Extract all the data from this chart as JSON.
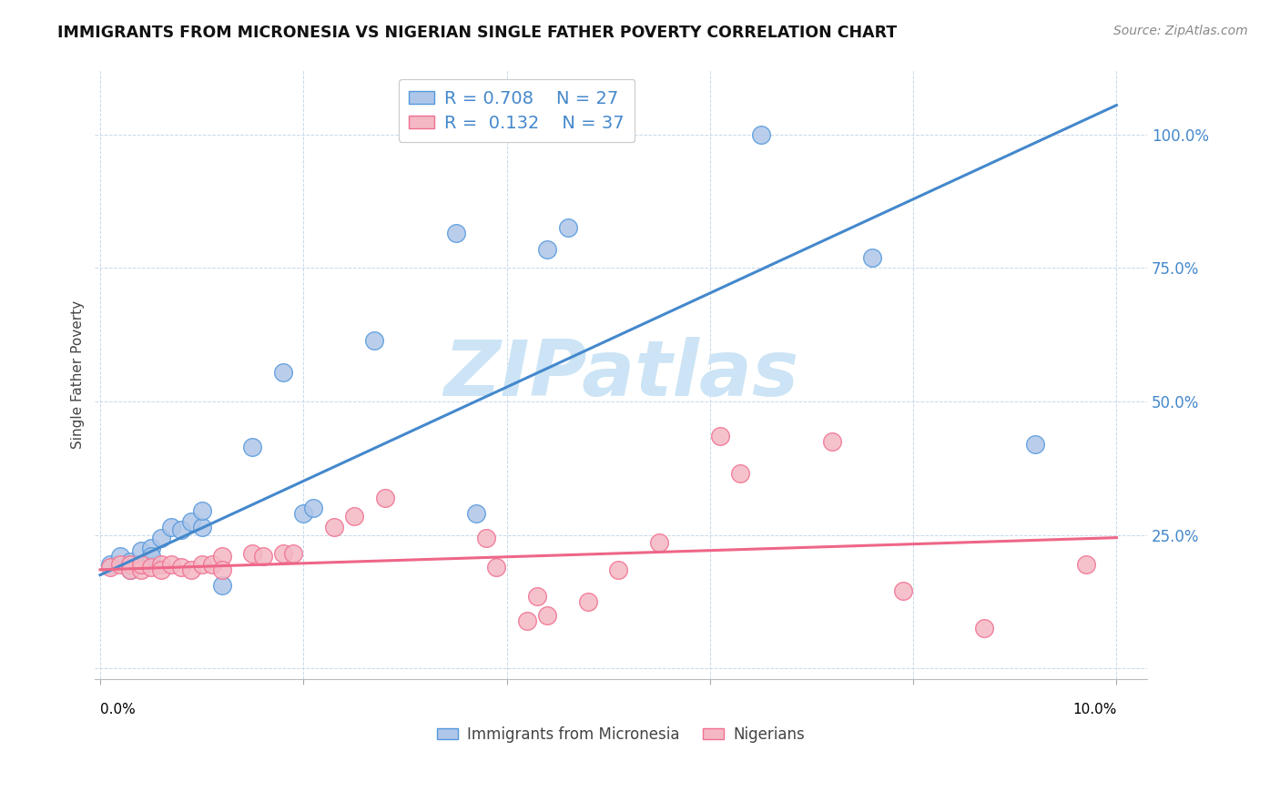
{
  "title": "IMMIGRANTS FROM MICRONESIA VS NIGERIAN SINGLE FATHER POVERTY CORRELATION CHART",
  "source": "Source: ZipAtlas.com",
  "ylabel": "Single Father Poverty",
  "legend_blue_r": "0.708",
  "legend_blue_n": "27",
  "legend_pink_r": "0.132",
  "legend_pink_n": "37",
  "blue_fill": "#aec6e8",
  "pink_fill": "#f4b8c4",
  "blue_edge": "#5599dd",
  "pink_edge": "#f07090",
  "blue_line_color": "#4488cc",
  "pink_line_color": "#ee6688",
  "blue_scatter": [
    [
      0.001,
      0.195
    ],
    [
      0.002,
      0.21
    ],
    [
      0.003,
      0.2
    ],
    [
      0.003,
      0.185
    ],
    [
      0.004,
      0.22
    ],
    [
      0.004,
      0.195
    ],
    [
      0.005,
      0.225
    ],
    [
      0.005,
      0.21
    ],
    [
      0.006,
      0.245
    ],
    [
      0.007,
      0.265
    ],
    [
      0.008,
      0.26
    ],
    [
      0.009,
      0.275
    ],
    [
      0.01,
      0.265
    ],
    [
      0.01,
      0.295
    ],
    [
      0.012,
      0.155
    ],
    [
      0.015,
      0.415
    ],
    [
      0.018,
      0.555
    ],
    [
      0.02,
      0.29
    ],
    [
      0.021,
      0.3
    ],
    [
      0.027,
      0.615
    ],
    [
      0.035,
      0.815
    ],
    [
      0.037,
      0.29
    ],
    [
      0.044,
      0.785
    ],
    [
      0.046,
      0.825
    ],
    [
      0.065,
      1.0
    ],
    [
      0.076,
      0.77
    ],
    [
      0.092,
      0.42
    ]
  ],
  "pink_scatter": [
    [
      0.001,
      0.19
    ],
    [
      0.002,
      0.195
    ],
    [
      0.003,
      0.195
    ],
    [
      0.003,
      0.185
    ],
    [
      0.004,
      0.185
    ],
    [
      0.004,
      0.195
    ],
    [
      0.005,
      0.19
    ],
    [
      0.006,
      0.195
    ],
    [
      0.006,
      0.185
    ],
    [
      0.007,
      0.195
    ],
    [
      0.008,
      0.19
    ],
    [
      0.009,
      0.185
    ],
    [
      0.01,
      0.195
    ],
    [
      0.011,
      0.195
    ],
    [
      0.012,
      0.21
    ],
    [
      0.012,
      0.185
    ],
    [
      0.015,
      0.215
    ],
    [
      0.016,
      0.21
    ],
    [
      0.018,
      0.215
    ],
    [
      0.019,
      0.215
    ],
    [
      0.023,
      0.265
    ],
    [
      0.025,
      0.285
    ],
    [
      0.028,
      0.32
    ],
    [
      0.038,
      0.245
    ],
    [
      0.039,
      0.19
    ],
    [
      0.042,
      0.09
    ],
    [
      0.043,
      0.135
    ],
    [
      0.044,
      0.1
    ],
    [
      0.048,
      0.125
    ],
    [
      0.051,
      0.185
    ],
    [
      0.055,
      0.235
    ],
    [
      0.061,
      0.435
    ],
    [
      0.063,
      0.365
    ],
    [
      0.072,
      0.425
    ],
    [
      0.079,
      0.145
    ],
    [
      0.087,
      0.075
    ],
    [
      0.097,
      0.195
    ]
  ],
  "blue_line_x": [
    0.0,
    0.1
  ],
  "blue_line_y": [
    0.175,
    1.055
  ],
  "pink_line_x": [
    0.0,
    0.1
  ],
  "pink_line_y": [
    0.185,
    0.245
  ],
  "watermark": "ZIPatlas",
  "watermark_color": "#cce4f5",
  "xlim": [
    -0.0005,
    0.103
  ],
  "ylim": [
    -0.02,
    1.12
  ],
  "x_ticks": [
    0.0,
    0.02,
    0.04,
    0.06,
    0.08,
    0.1
  ],
  "y_ticks": [
    0.0,
    0.25,
    0.5,
    0.75,
    1.0
  ]
}
